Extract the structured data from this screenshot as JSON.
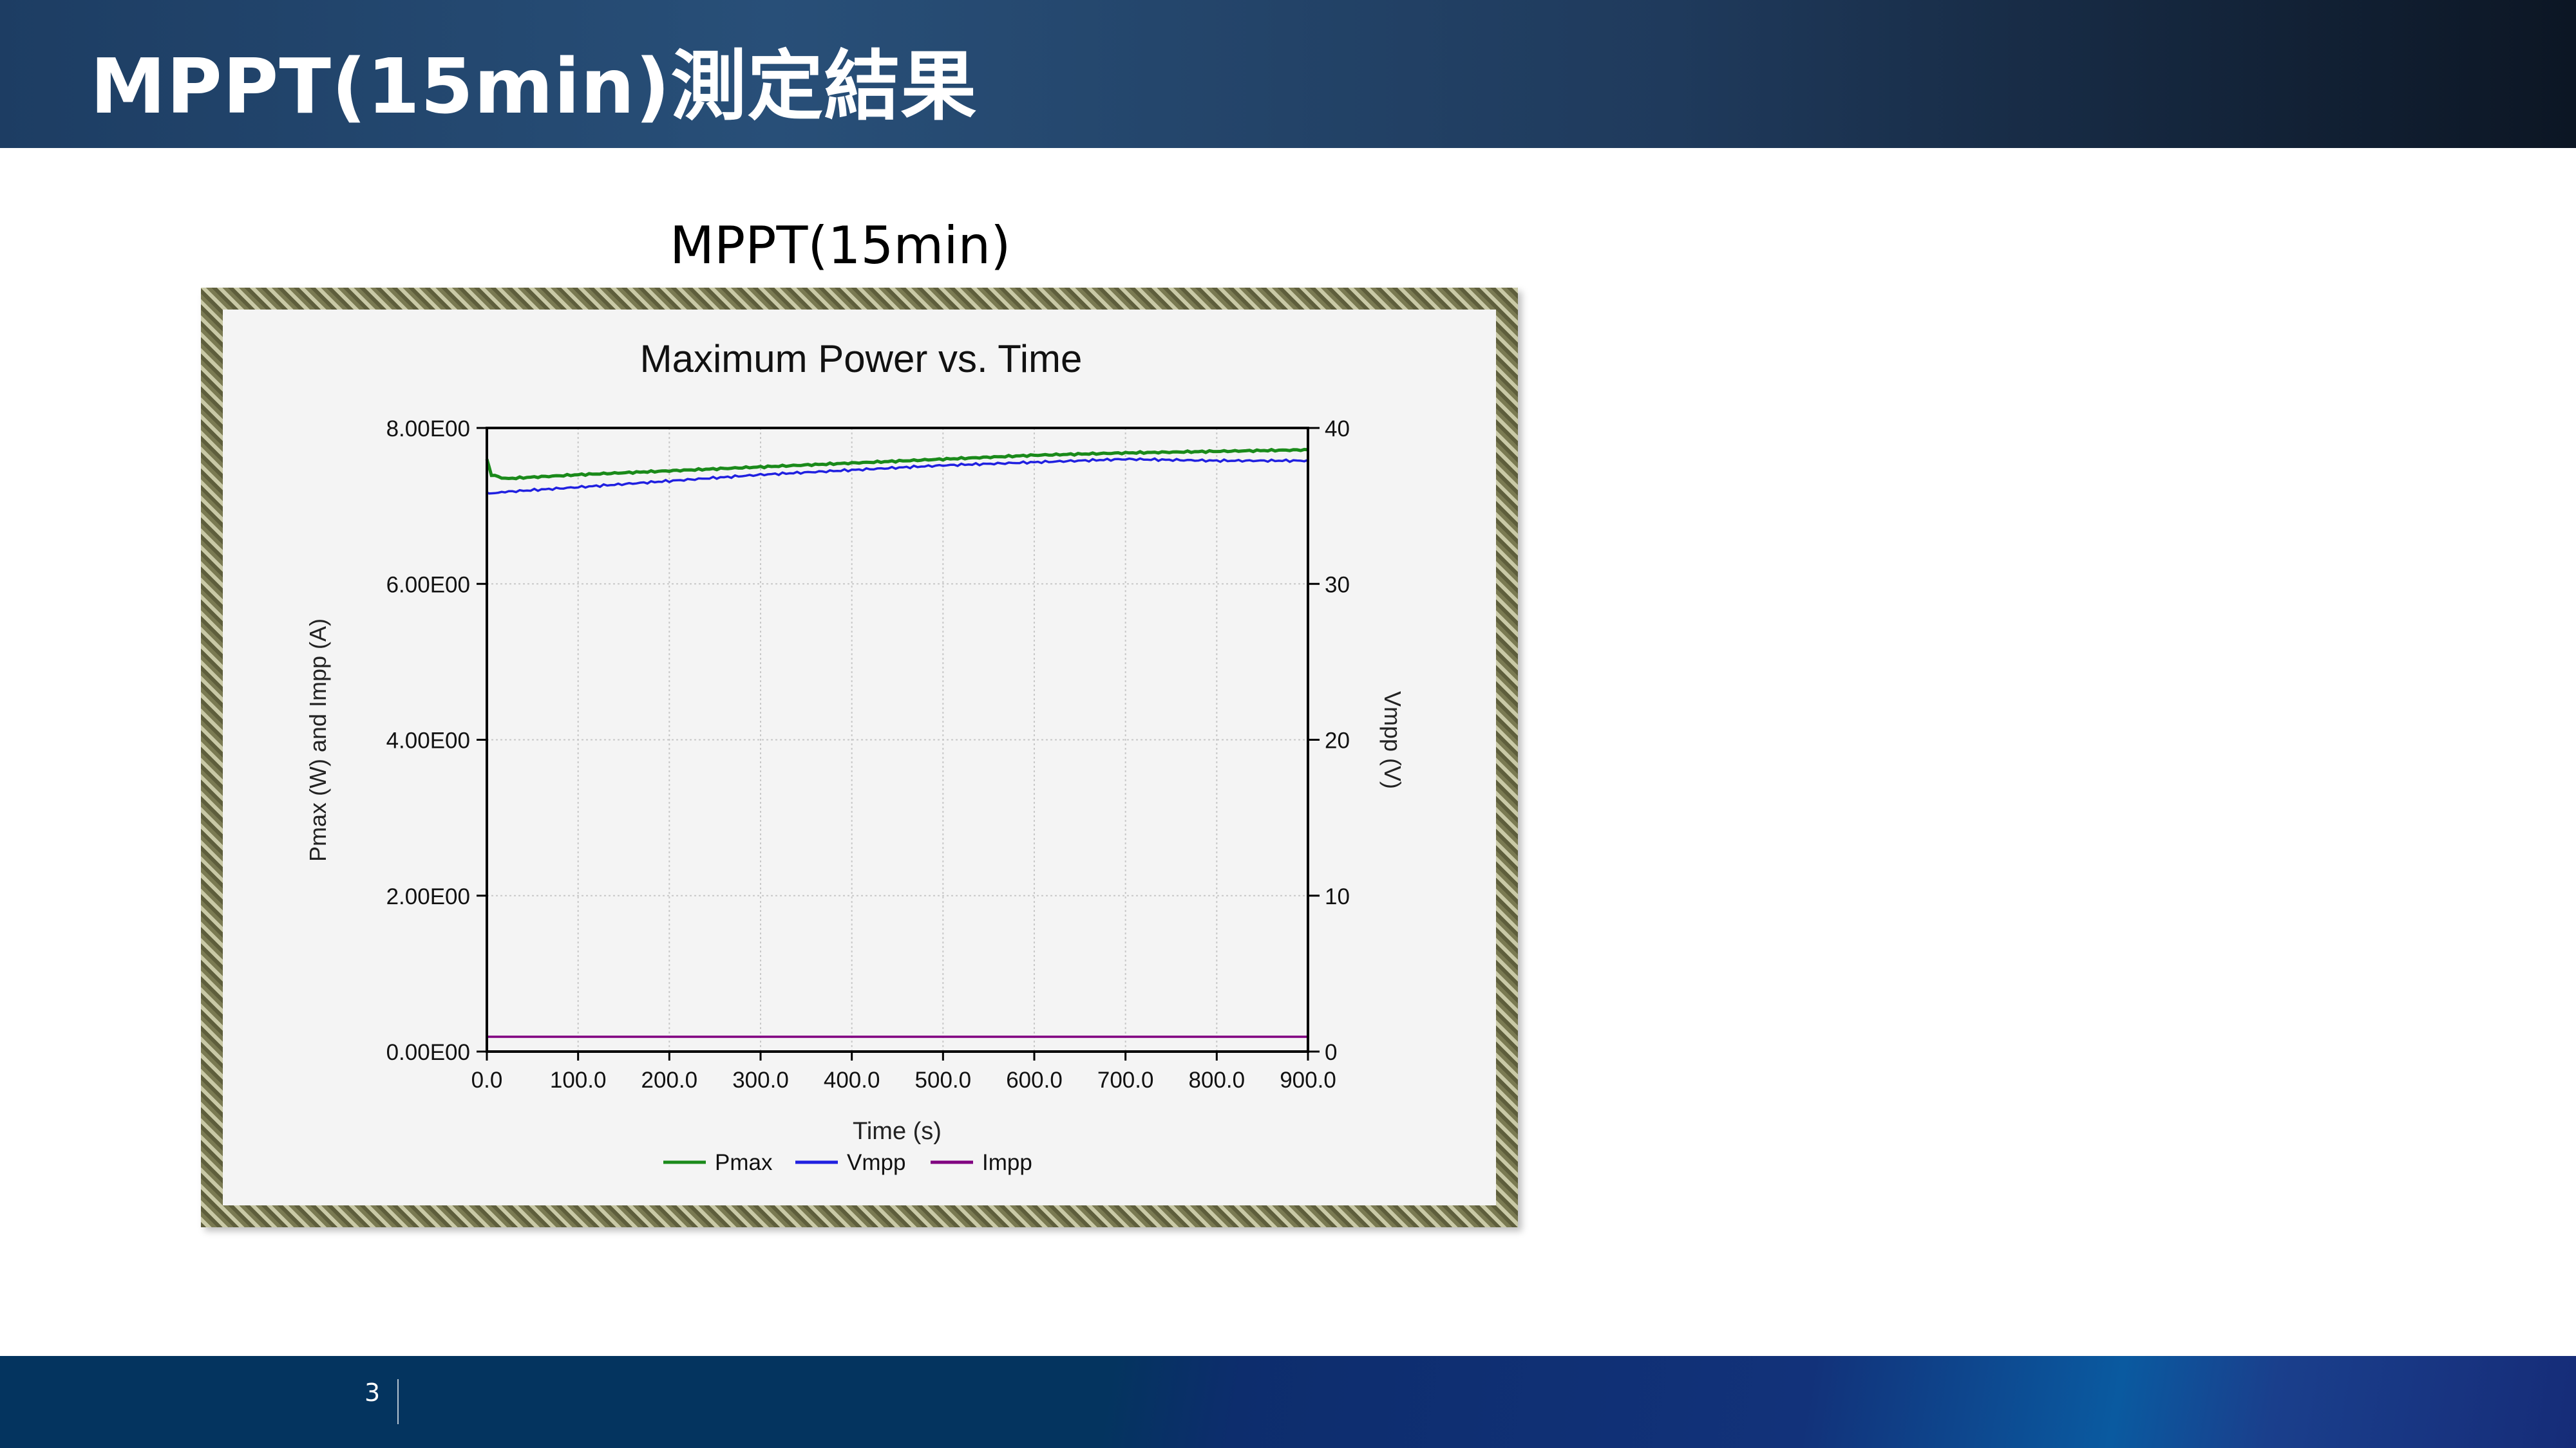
{
  "slide": {
    "title": "MPPT(15min)測定結果",
    "page_number": "3",
    "caption": "MPPT(15min)"
  },
  "colors": {
    "pmax": "#1a8a1a",
    "vmpp": "#2020e0",
    "impp": "#800080",
    "plot_bg": "#f4f4f4",
    "grid": "#c8c8c8"
  },
  "chart_data": {
    "type": "line",
    "title": "Maximum Power vs. Time",
    "xlabel": "Time (s)",
    "ylabel": "Pmax (W) and Impp (A)",
    "y2label": "Vmpp (V)",
    "xlim": [
      0,
      900
    ],
    "ylim": [
      0,
      8
    ],
    "y2lim": [
      0,
      40
    ],
    "x_ticks": [
      "0.0",
      "100.0",
      "200.0",
      "300.0",
      "400.0",
      "500.0",
      "600.0",
      "700.0",
      "800.0",
      "900.0"
    ],
    "y_ticks": [
      "0.00E00",
      "2.00E00",
      "4.00E00",
      "6.00E00",
      "8.00E00"
    ],
    "y2_ticks": [
      "0",
      "10",
      "20",
      "30",
      "40"
    ],
    "grid": true,
    "legend_position": "bottom-center",
    "x": [
      0,
      5,
      20,
      100,
      200,
      300,
      400,
      500,
      600,
      700,
      800,
      900
    ],
    "series": [
      {
        "name": "Pmax",
        "axis": "left",
        "values": [
          7.6,
          7.4,
          7.35,
          7.4,
          7.45,
          7.5,
          7.55,
          7.6,
          7.65,
          7.68,
          7.7,
          7.72
        ]
      },
      {
        "name": "Vmpp",
        "axis": "right",
        "values": [
          35.8,
          35.8,
          35.9,
          36.2,
          36.6,
          37.0,
          37.3,
          37.6,
          37.8,
          38.0,
          37.9,
          37.9
        ]
      },
      {
        "name": "Impp",
        "axis": "left",
        "values": [
          0.19,
          0.19,
          0.19,
          0.19,
          0.19,
          0.19,
          0.19,
          0.19,
          0.19,
          0.19,
          0.19,
          0.19
        ]
      }
    ]
  }
}
